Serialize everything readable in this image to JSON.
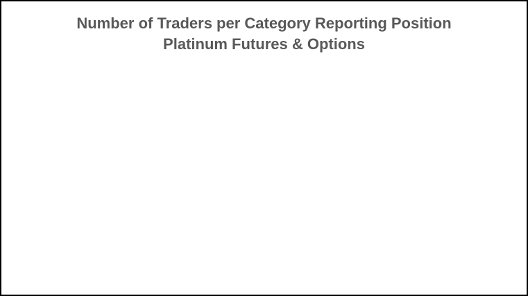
{
  "chart_data": {
    "type": "bar",
    "title": "Number of Traders per Category Reporting Position",
    "subtitle": "Platinum Futures & Options",
    "categories": [],
    "series": [],
    "xlabel": "",
    "ylabel": "",
    "grid": false,
    "legend": "none"
  },
  "colors": {
    "title": "#595959",
    "border": "#000000",
    "background": "#ffffff"
  }
}
